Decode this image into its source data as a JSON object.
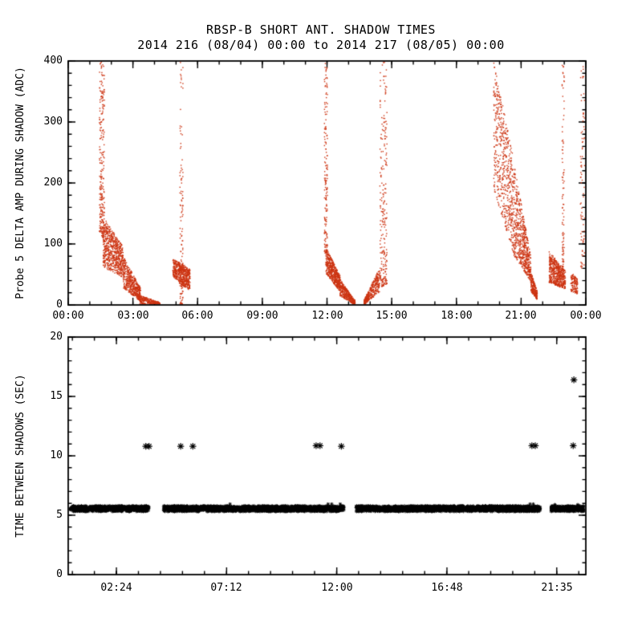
{
  "page": {
    "title": "RBSP-B SHORT ANT. SHADOW TIMES",
    "subtitle": "2014 216 (08/04) 00:00 to 2014 217 (08/05) 00:00"
  },
  "colors": {
    "background": "#FFFFFF",
    "axis": "#000000",
    "top_marker": "#CC3311",
    "bottom_marker": "#000000"
  },
  "chart_data": [
    {
      "type": "scatter",
      "panel": "top",
      "title": "RBSP-B SHORT ANT. SHADOW TIMES",
      "subtitle": "2014 216 (08/04) 00:00 to 2014 217 (08/05) 00:00",
      "xlabel": "",
      "ylabel": "Probe 5 DELTA AMP DURING SHADOW (ADC)",
      "x_unit": "hours of day 2014-216",
      "xlim": [
        0,
        24
      ],
      "ylim": [
        0,
        400
      ],
      "grid": false,
      "marker": "dot",
      "marker_color": "#CC3311",
      "xticks": {
        "values": [
          0,
          3,
          6,
          9,
          12,
          15,
          18,
          21,
          24
        ],
        "labels": [
          "00:00",
          "03:00",
          "06:00",
          "09:00",
          "12:00",
          "15:00",
          "18:00",
          "21:00",
          "00:00"
        ],
        "minor_step": 1
      },
      "yticks": {
        "values": [
          0,
          100,
          200,
          300,
          400
        ],
        "labels": [
          "0",
          "100",
          "200",
          "300",
          "400"
        ],
        "minor_step": 20
      },
      "point_bands": [
        {
          "x0": 1.45,
          "x1": 1.68,
          "ylo0": 120,
          "yhi0": 400,
          "ylo1": 105,
          "yhi1": 400,
          "n": 260,
          "bias": 1.5
        },
        {
          "x0": 1.62,
          "x1": 2.55,
          "ylo0": 62,
          "yhi0": 145,
          "ylo1": 45,
          "yhi1": 95,
          "n": 650,
          "bias": 1
        },
        {
          "x0": 2.55,
          "x1": 3.35,
          "ylo0": 28,
          "yhi0": 80,
          "ylo1": 6,
          "yhi1": 28,
          "n": 480,
          "bias": 1
        },
        {
          "x0": 3.3,
          "x1": 4.25,
          "ylo0": 0,
          "yhi0": 16,
          "ylo1": 0,
          "yhi1": 4,
          "n": 260,
          "bias": 1
        },
        {
          "x0": 4.85,
          "x1": 5.15,
          "ylo0": 45,
          "yhi0": 75,
          "ylo1": 40,
          "yhi1": 70,
          "n": 160,
          "bias": 1
        },
        {
          "x0": 5.18,
          "x1": 5.32,
          "ylo0": 0,
          "yhi0": 400,
          "ylo1": 0,
          "yhi1": 400,
          "n": 130,
          "bias": 2.4
        },
        {
          "x0": 5.12,
          "x1": 5.65,
          "ylo0": 35,
          "yhi0": 72,
          "ylo1": 24,
          "yhi1": 58,
          "n": 380,
          "bias": 1
        },
        {
          "x0": 11.88,
          "x1": 12.02,
          "ylo0": 85,
          "yhi0": 400,
          "ylo1": 85,
          "yhi1": 400,
          "n": 170,
          "bias": 1.7
        },
        {
          "x0": 11.95,
          "x1": 12.6,
          "ylo0": 52,
          "yhi0": 95,
          "ylo1": 22,
          "yhi1": 48,
          "n": 480,
          "bias": 1
        },
        {
          "x0": 12.6,
          "x1": 13.3,
          "ylo0": 15,
          "yhi0": 42,
          "ylo1": 0,
          "yhi1": 7,
          "n": 360,
          "bias": 1
        },
        {
          "x0": 13.72,
          "x1": 14.45,
          "ylo0": 0,
          "yhi0": 8,
          "ylo1": 22,
          "yhi1": 62,
          "n": 320,
          "bias": 1
        },
        {
          "x0": 14.45,
          "x1": 14.78,
          "ylo0": 28,
          "yhi0": 400,
          "ylo1": 35,
          "yhi1": 400,
          "n": 240,
          "bias": 2.0
        },
        {
          "x0": 19.72,
          "x1": 20.6,
          "ylo0": 190,
          "yhi0": 400,
          "ylo1": 90,
          "yhi1": 250,
          "n": 520,
          "bias": 1
        },
        {
          "x0": 20.6,
          "x1": 21.45,
          "ylo0": 85,
          "yhi0": 245,
          "ylo1": 38,
          "yhi1": 80,
          "n": 620,
          "bias": 1.1
        },
        {
          "x0": 21.45,
          "x1": 21.75,
          "ylo0": 22,
          "yhi0": 55,
          "ylo1": 8,
          "yhi1": 22,
          "n": 200,
          "bias": 1
        },
        {
          "x0": 22.3,
          "x1": 23.05,
          "ylo0": 36,
          "yhi0": 88,
          "ylo1": 26,
          "yhi1": 56,
          "n": 520,
          "bias": 1
        },
        {
          "x0": 22.9,
          "x1": 23.0,
          "ylo0": 60,
          "yhi0": 400,
          "ylo1": 60,
          "yhi1": 400,
          "n": 90,
          "bias": 1.4
        },
        {
          "x0": 23.3,
          "x1": 23.62,
          "ylo0": 22,
          "yhi0": 55,
          "ylo1": 18,
          "yhi1": 42,
          "n": 130,
          "bias": 1
        },
        {
          "x0": 23.75,
          "x1": 23.95,
          "ylo0": 60,
          "yhi0": 400,
          "ylo1": 60,
          "yhi1": 400,
          "n": 80,
          "bias": 1.2
        }
      ]
    },
    {
      "type": "scatter",
      "panel": "bottom",
      "xlabel": "",
      "ylabel": "TIME BETWEEN SHADOWS (SEC)",
      "x_unit": "hours of day 2014-216",
      "xlim": [
        0.3,
        22.85
      ],
      "ylim": [
        0,
        20
      ],
      "grid": false,
      "marker": "asterisk",
      "marker_color": "#000000",
      "xticks": {
        "values": [
          2.4,
          7.2,
          12.0,
          16.8,
          21.583
        ],
        "labels": [
          "02:24",
          "07:12",
          "12:00",
          "16:48",
          "21:35"
        ],
        "minor_step": 0.9592
      },
      "yticks": {
        "values": [
          0,
          5,
          10,
          15,
          20
        ],
        "labels": [
          "0",
          "5",
          "10",
          "15",
          "20"
        ],
        "minor_step": 1
      },
      "band": {
        "y_center": 5.55,
        "y_spread": 0.22,
        "density_per_hour": 170,
        "segments": [
          [
            0.38,
            3.8
          ],
          [
            4.45,
            12.3
          ],
          [
            12.85,
            20.85
          ],
          [
            21.35,
            22.78
          ]
        ]
      },
      "outliers": [
        {
          "x": 3.68,
          "y": 10.8
        },
        {
          "x": 3.82,
          "y": 10.8
        },
        {
          "x": 5.2,
          "y": 10.8
        },
        {
          "x": 5.73,
          "y": 10.8
        },
        {
          "x": 11.1,
          "y": 10.85
        },
        {
          "x": 11.27,
          "y": 10.85
        },
        {
          "x": 12.2,
          "y": 10.8
        },
        {
          "x": 20.5,
          "y": 10.85
        },
        {
          "x": 20.65,
          "y": 10.85
        },
        {
          "x": 22.3,
          "y": 10.85
        },
        {
          "x": 22.33,
          "y": 16.4
        }
      ],
      "bumps": [
        {
          "x": 7.35,
          "y": 5.95
        },
        {
          "x": 11.62,
          "y": 5.95
        },
        {
          "x": 11.78,
          "y": 5.95
        },
        {
          "x": 12.15,
          "y": 5.95
        },
        {
          "x": 20.42,
          "y": 5.95
        },
        {
          "x": 20.56,
          "y": 5.95
        },
        {
          "x": 21.5,
          "y": 5.9
        },
        {
          "x": 22.5,
          "y": 5.9
        }
      ]
    }
  ]
}
